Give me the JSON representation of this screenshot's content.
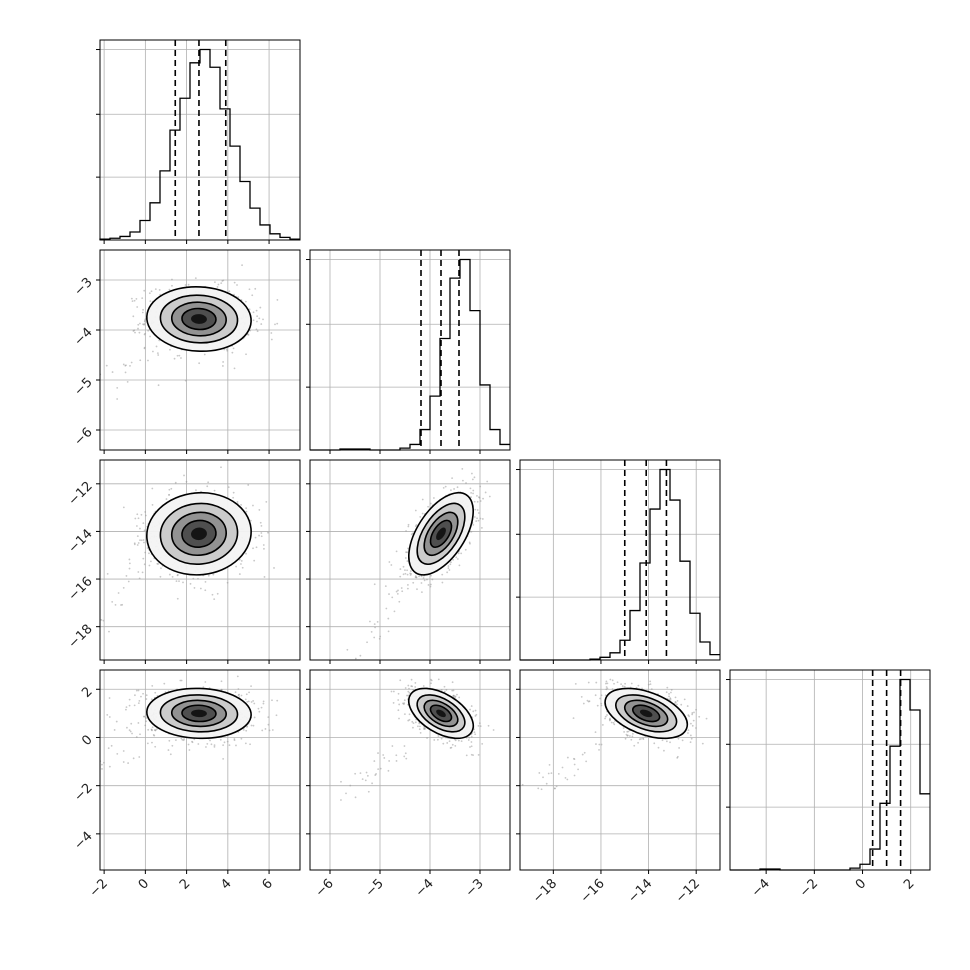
{
  "chart_data": {
    "type": "corner",
    "parameters": [
      {
        "range": [
          -2.2,
          7.5
        ],
        "ticks": [
          -2,
          0,
          2,
          4,
          6
        ],
        "tick_labels": [
          "−2",
          "0",
          "2",
          "4",
          "6"
        ],
        "mean": 2.6,
        "sd": 1.1
      },
      {
        "range": [
          -6.4,
          -2.4
        ],
        "ticks": [
          -6,
          -5,
          -4,
          -3
        ],
        "tick_labels": [
          "−6",
          "−5",
          "−4",
          "−3"
        ],
        "mean": -3.78,
        "sd": 0.28
      },
      {
        "range": [
          -19.4,
          -11.0
        ],
        "ticks": [
          -18,
          -16,
          -14,
          -12
        ],
        "tick_labels": [
          "−18",
          "−16",
          "−14",
          "−12"
        ],
        "mean": -14.1,
        "sd": 0.75
      },
      {
        "range": [
          -5.5,
          2.8
        ],
        "ticks": [
          -4,
          -2,
          0,
          2
        ],
        "tick_labels": [
          "−4",
          "−2",
          "0",
          "2"
        ],
        "mean": 1.0,
        "sd": 0.45
      }
    ],
    "histograms": [
      {
        "edges_start": -2.2,
        "bin_width": 0.485,
        "counts": [
          1,
          2,
          4,
          9,
          22,
          42,
          78,
          124,
          160,
          200,
          215,
          195,
          148,
          106,
          66,
          36,
          17,
          7,
          3,
          1
        ],
        "quantiles": [
          1.45,
          2.6,
          3.9
        ]
      },
      {
        "edges_start": -6.4,
        "bin_width": 0.2,
        "counts": [
          0,
          0,
          0,
          1,
          1,
          1,
          0,
          0,
          0,
          2,
          6,
          22,
          58,
          120,
          185,
          205,
          150,
          70,
          22,
          6
        ],
        "quantiles": [
          -4.18,
          -3.78,
          -3.42
        ]
      },
      {
        "edges_start": -19.4,
        "bin_width": 0.42,
        "counts": [
          0,
          0,
          0,
          0,
          0,
          0,
          0,
          1,
          3,
          8,
          22,
          55,
          108,
          168,
          212,
          178,
          110,
          52,
          20,
          6
        ],
        "quantiles": [
          -15.0,
          -14.1,
          -13.25
        ]
      },
      {
        "edges_start": -5.5,
        "bin_width": 0.415,
        "counts": [
          0,
          0,
          0,
          1,
          1,
          0,
          0,
          0,
          0,
          0,
          0,
          0,
          2,
          6,
          22,
          70,
          130,
          200,
          168,
          80
        ],
        "quantiles": [
          0.42,
          1.0,
          1.58
        ]
      }
    ],
    "pairs": [
      {
        "row": 1,
        "col": 0,
        "center": [
          2.6,
          -3.78
        ],
        "sd": [
          1.1,
          0.28
        ],
        "corr": -0.05
      },
      {
        "row": 2,
        "col": 0,
        "center": [
          2.6,
          -14.1
        ],
        "sd": [
          1.1,
          0.75
        ],
        "corr": 0.05
      },
      {
        "row": 2,
        "col": 1,
        "center": [
          -3.78,
          -14.1
        ],
        "sd": [
          0.28,
          0.75
        ],
        "corr": 0.55
      },
      {
        "row": 3,
        "col": 0,
        "center": [
          2.6,
          1.0
        ],
        "sd": [
          1.1,
          0.45
        ],
        "corr": -0.05
      },
      {
        "row": 3,
        "col": 1,
        "center": [
          -3.78,
          1.0
        ],
        "sd": [
          0.28,
          0.45
        ],
        "corr": -0.5
      },
      {
        "row": 3,
        "col": 2,
        "center": [
          -14.1,
          1.0
        ],
        "sd": [
          0.75,
          0.45
        ],
        "corr": -0.45
      }
    ],
    "contour_levels_sigma": [
      0.5,
      1.0,
      1.5,
      2.0
    ],
    "grid": true,
    "colors": {
      "hist": "#000000",
      "contour": "#000000",
      "grid": "#b0b0b0",
      "points": "#9a9a9a",
      "axis": "#000000"
    }
  }
}
